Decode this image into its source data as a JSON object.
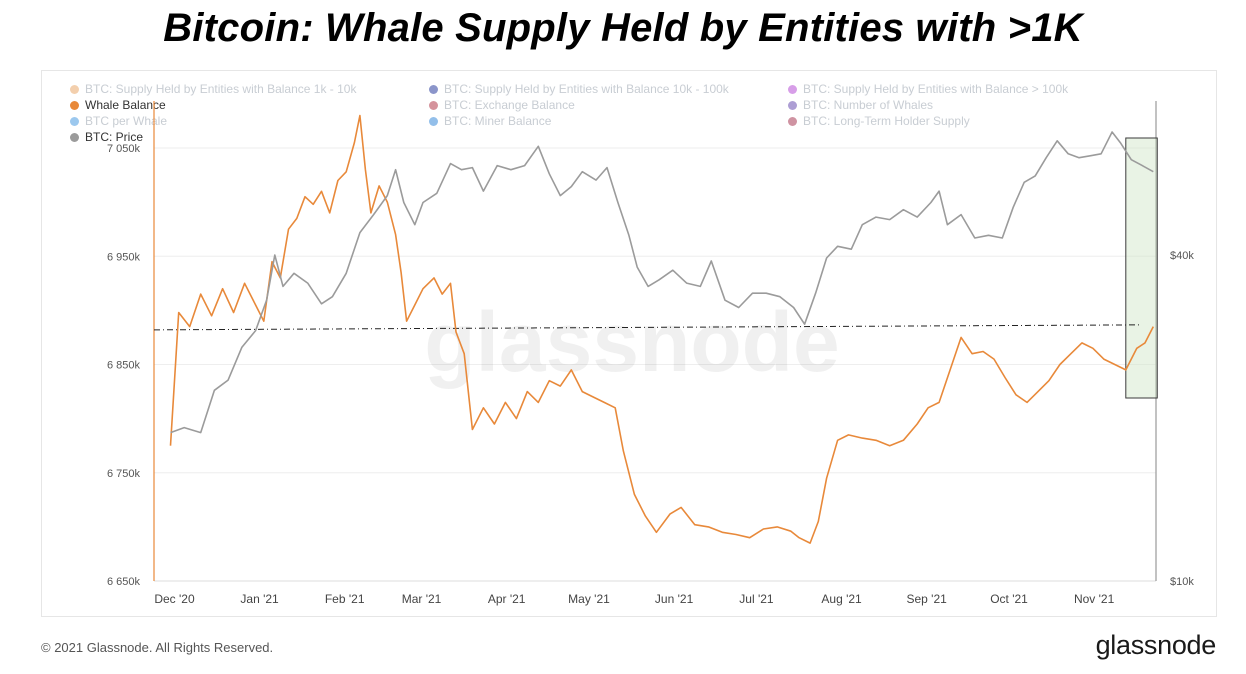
{
  "title": "Bitcoin: Whale Supply Held by Entities with >1K",
  "watermark": "glassnode",
  "footer": {
    "copyright": "© 2021 Glassnode. All Rights Reserved.",
    "logo": "glassnode"
  },
  "legend": [
    {
      "label": "BTC: Supply Held by Entities with Balance 1k - 10k",
      "color": "#e9a86a",
      "active": false
    },
    {
      "label": "BTC: Supply Held by Entities with Balance 10k - 100k",
      "color": "#2c3e9e",
      "active": false
    },
    {
      "label": "BTC: Supply Held by Entities with Balance > 100k",
      "color": "#b64fd6",
      "active": false
    },
    {
      "label": "Whale Balance",
      "color": "#e8893a",
      "active": true
    },
    {
      "label": "BTC: Exchange Balance",
      "color": "#b23a4a",
      "active": false
    },
    {
      "label": "BTC: Number of Whales",
      "color": "#6a4fb0",
      "active": false
    },
    {
      "label": "BTC per Whale",
      "color": "#4a9be0",
      "active": false
    },
    {
      "label": "BTC: Miner Balance",
      "color": "#3a8ad8",
      "active": false
    },
    {
      "label": "BTC: Long-Term Holder Supply",
      "color": "#a83a55",
      "active": false
    },
    {
      "label": "BTC: Price",
      "color": "#9b9b9b",
      "active": true
    }
  ],
  "chart_data": {
    "type": "line",
    "x_tick_labels": [
      "Dec '20",
      "Jan '21",
      "Feb '21",
      "Mar '21",
      "Apr '21",
      "May '21",
      "Jun '21",
      "Jul '21",
      "Aug '21",
      "Sep '21",
      "Oct '21",
      "Nov '21"
    ],
    "y_left_ticks": [
      "7 050k",
      "6 950k",
      "6 850k",
      "6 750k",
      "6 650k"
    ],
    "y_left_range": [
      6650000,
      7050000
    ],
    "y_right_ticks": [
      "$40k",
      "$10k"
    ],
    "y_right_scale": "log",
    "reference_line_whale_balance": 6882000,
    "highlight_region": {
      "from": "2021-11-14",
      "to": "2021-11-24"
    },
    "series": [
      {
        "name": "Whale Balance",
        "axis": "left",
        "color": "#e8893a",
        "points": [
          [
            "2020-12-01",
            6775000
          ],
          [
            "2020-12-04",
            6898000
          ],
          [
            "2020-12-08",
            6885000
          ],
          [
            "2020-12-12",
            6915000
          ],
          [
            "2020-12-16",
            6895000
          ],
          [
            "2020-12-20",
            6920000
          ],
          [
            "2020-12-24",
            6898000
          ],
          [
            "2020-12-28",
            6925000
          ],
          [
            "2021-01-01",
            6905000
          ],
          [
            "2021-01-04",
            6890000
          ],
          [
            "2021-01-07",
            6945000
          ],
          [
            "2021-01-10",
            6930000
          ],
          [
            "2021-01-13",
            6975000
          ],
          [
            "2021-01-16",
            6985000
          ],
          [
            "2021-01-19",
            7005000
          ],
          [
            "2021-01-22",
            6998000
          ],
          [
            "2021-01-25",
            7010000
          ],
          [
            "2021-01-28",
            6990000
          ],
          [
            "2021-01-31",
            7020000
          ],
          [
            "2021-02-03",
            7028000
          ],
          [
            "2021-02-06",
            7055000
          ],
          [
            "2021-02-08",
            7080000
          ],
          [
            "2021-02-10",
            7030000
          ],
          [
            "2021-02-12",
            6990000
          ],
          [
            "2021-02-15",
            7015000
          ],
          [
            "2021-02-18",
            7000000
          ],
          [
            "2021-02-21",
            6970000
          ],
          [
            "2021-02-23",
            6935000
          ],
          [
            "2021-02-25",
            6890000
          ],
          [
            "2021-02-28",
            6905000
          ],
          [
            "2021-03-03",
            6920000
          ],
          [
            "2021-03-07",
            6930000
          ],
          [
            "2021-03-10",
            6915000
          ],
          [
            "2021-03-13",
            6925000
          ],
          [
            "2021-03-15",
            6880000
          ],
          [
            "2021-03-18",
            6860000
          ],
          [
            "2021-03-21",
            6790000
          ],
          [
            "2021-03-25",
            6810000
          ],
          [
            "2021-03-29",
            6795000
          ],
          [
            "2021-04-02",
            6815000
          ],
          [
            "2021-04-06",
            6800000
          ],
          [
            "2021-04-10",
            6825000
          ],
          [
            "2021-04-14",
            6815000
          ],
          [
            "2021-04-18",
            6835000
          ],
          [
            "2021-04-22",
            6830000
          ],
          [
            "2021-04-26",
            6845000
          ],
          [
            "2021-04-30",
            6825000
          ],
          [
            "2021-05-04",
            6820000
          ],
          [
            "2021-05-08",
            6815000
          ],
          [
            "2021-05-12",
            6810000
          ],
          [
            "2021-05-15",
            6770000
          ],
          [
            "2021-05-19",
            6730000
          ],
          [
            "2021-05-23",
            6710000
          ],
          [
            "2021-05-27",
            6695000
          ],
          [
            "2021-06-01",
            6712000
          ],
          [
            "2021-06-05",
            6718000
          ],
          [
            "2021-06-10",
            6702000
          ],
          [
            "2021-06-15",
            6700000
          ],
          [
            "2021-06-20",
            6695000
          ],
          [
            "2021-06-25",
            6693000
          ],
          [
            "2021-06-30",
            6690000
          ],
          [
            "2021-07-05",
            6698000
          ],
          [
            "2021-07-10",
            6700000
          ],
          [
            "2021-07-15",
            6696000
          ],
          [
            "2021-07-18",
            6690000
          ],
          [
            "2021-07-22",
            6685000
          ],
          [
            "2021-07-25",
            6705000
          ],
          [
            "2021-07-28",
            6745000
          ],
          [
            "2021-08-01",
            6780000
          ],
          [
            "2021-08-05",
            6785000
          ],
          [
            "2021-08-10",
            6782000
          ],
          [
            "2021-08-15",
            6780000
          ],
          [
            "2021-08-20",
            6775000
          ],
          [
            "2021-08-25",
            6780000
          ],
          [
            "2021-08-30",
            6795000
          ],
          [
            "2021-09-03",
            6810000
          ],
          [
            "2021-09-07",
            6815000
          ],
          [
            "2021-09-11",
            6845000
          ],
          [
            "2021-09-15",
            6875000
          ],
          [
            "2021-09-19",
            6860000
          ],
          [
            "2021-09-23",
            6862000
          ],
          [
            "2021-09-27",
            6855000
          ],
          [
            "2021-10-01",
            6838000
          ],
          [
            "2021-10-05",
            6822000
          ],
          [
            "2021-10-09",
            6815000
          ],
          [
            "2021-10-13",
            6825000
          ],
          [
            "2021-10-17",
            6835000
          ],
          [
            "2021-10-21",
            6850000
          ],
          [
            "2021-10-25",
            6860000
          ],
          [
            "2021-10-29",
            6870000
          ],
          [
            "2021-11-02",
            6865000
          ],
          [
            "2021-11-06",
            6855000
          ],
          [
            "2021-11-10",
            6850000
          ],
          [
            "2021-11-14",
            6845000
          ],
          [
            "2021-11-18",
            6865000
          ],
          [
            "2021-11-21",
            6870000
          ],
          [
            "2021-11-24",
            6885000
          ]
        ]
      },
      {
        "name": "BTC: Price",
        "axis": "right",
        "color": "#9b9b9b",
        "points": [
          [
            "2020-12-01",
            18800
          ],
          [
            "2020-12-06",
            19200
          ],
          [
            "2020-12-12",
            18800
          ],
          [
            "2020-12-17",
            22500
          ],
          [
            "2020-12-22",
            23500
          ],
          [
            "2020-12-27",
            27000
          ],
          [
            "2021-01-01",
            29000
          ],
          [
            "2021-01-05",
            33000
          ],
          [
            "2021-01-08",
            40000
          ],
          [
            "2021-01-11",
            35000
          ],
          [
            "2021-01-15",
            37000
          ],
          [
            "2021-01-20",
            35500
          ],
          [
            "2021-01-25",
            32500
          ],
          [
            "2021-01-29",
            33500
          ],
          [
            "2021-02-03",
            37000
          ],
          [
            "2021-02-08",
            44000
          ],
          [
            "2021-02-13",
            47500
          ],
          [
            "2021-02-18",
            51500
          ],
          [
            "2021-02-21",
            57500
          ],
          [
            "2021-02-24",
            50000
          ],
          [
            "2021-02-28",
            45500
          ],
          [
            "2021-03-03",
            50000
          ],
          [
            "2021-03-08",
            52000
          ],
          [
            "2021-03-13",
            59000
          ],
          [
            "2021-03-17",
            57500
          ],
          [
            "2021-03-21",
            58000
          ],
          [
            "2021-03-25",
            52500
          ],
          [
            "2021-03-30",
            58500
          ],
          [
            "2021-04-04",
            57500
          ],
          [
            "2021-04-09",
            58500
          ],
          [
            "2021-04-14",
            63500
          ],
          [
            "2021-04-18",
            56500
          ],
          [
            "2021-04-22",
            51500
          ],
          [
            "2021-04-26",
            53500
          ],
          [
            "2021-04-30",
            57000
          ],
          [
            "2021-05-05",
            55000
          ],
          [
            "2021-05-09",
            58000
          ],
          [
            "2021-05-13",
            50000
          ],
          [
            "2021-05-17",
            43500
          ],
          [
            "2021-05-20",
            38000
          ],
          [
            "2021-05-24",
            35000
          ],
          [
            "2021-05-28",
            36000
          ],
          [
            "2021-06-02",
            37500
          ],
          [
            "2021-06-07",
            35500
          ],
          [
            "2021-06-12",
            35000
          ],
          [
            "2021-06-16",
            39000
          ],
          [
            "2021-06-21",
            33000
          ],
          [
            "2021-06-26",
            32000
          ],
          [
            "2021-07-01",
            34000
          ],
          [
            "2021-07-06",
            34000
          ],
          [
            "2021-07-11",
            33500
          ],
          [
            "2021-07-16",
            32000
          ],
          [
            "2021-07-20",
            29800
          ],
          [
            "2021-07-24",
            34000
          ],
          [
            "2021-07-28",
            39500
          ],
          [
            "2021-08-01",
            41500
          ],
          [
            "2021-08-06",
            41000
          ],
          [
            "2021-08-10",
            45500
          ],
          [
            "2021-08-15",
            47000
          ],
          [
            "2021-08-20",
            46500
          ],
          [
            "2021-08-25",
            48500
          ],
          [
            "2021-08-30",
            47000
          ],
          [
            "2021-09-04",
            50000
          ],
          [
            "2021-09-07",
            52500
          ],
          [
            "2021-09-10",
            45500
          ],
          [
            "2021-09-15",
            47500
          ],
          [
            "2021-09-20",
            43000
          ],
          [
            "2021-09-25",
            43500
          ],
          [
            "2021-09-30",
            43000
          ],
          [
            "2021-10-04",
            49000
          ],
          [
            "2021-10-08",
            54500
          ],
          [
            "2021-10-12",
            56000
          ],
          [
            "2021-10-16",
            60500
          ],
          [
            "2021-10-20",
            65000
          ],
          [
            "2021-10-24",
            61500
          ],
          [
            "2021-10-28",
            60500
          ],
          [
            "2021-11-01",
            61000
          ],
          [
            "2021-11-05",
            61500
          ],
          [
            "2021-11-09",
            67500
          ],
          [
            "2021-11-12",
            64500
          ],
          [
            "2021-11-16",
            60000
          ],
          [
            "2021-11-20",
            58500
          ],
          [
            "2021-11-24",
            57000
          ]
        ]
      }
    ]
  }
}
